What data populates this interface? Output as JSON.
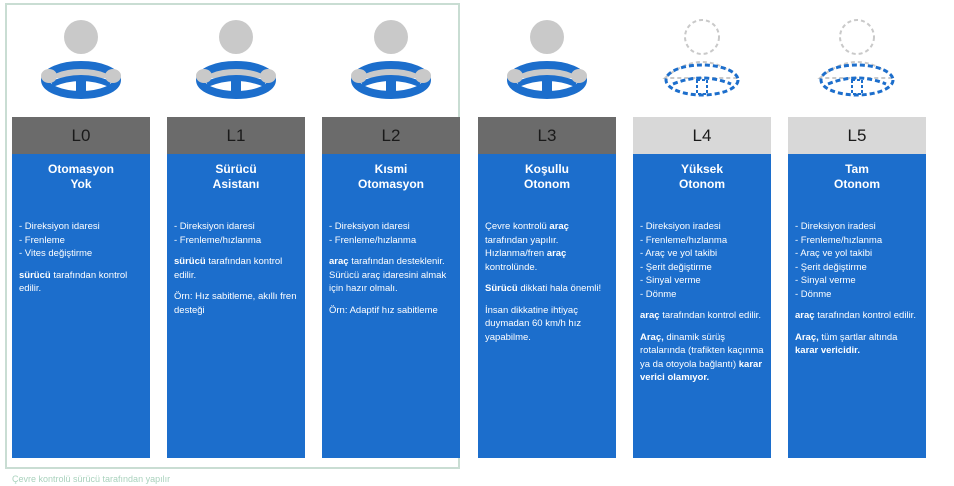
{
  "footer_note": "Çevre kontrolü sürücü tarafından yapılır",
  "levels": [
    {
      "label": "L0",
      "title_line1": "Otomasyon",
      "title_line2": "Yok",
      "bullets": [
        "- Direksiyon idaresi",
        "- Frenleme",
        "- Vites değiştirme"
      ],
      "p1_bold": "sürücü",
      "p1_rest": " tarafından kontrol edilir."
    },
    {
      "label": "L1",
      "title_line1": "Sürücü",
      "title_line2": "Asistanı",
      "bullets": [
        "- Direksiyon idaresi",
        "- Frenleme/hızlanma"
      ],
      "p1_bold": "sürücü",
      "p1_rest": " tarafından kontrol edilir.",
      "p2": "Örn: Hız sabitleme, akıllı fren desteği"
    },
    {
      "label": "L2",
      "title_line1": "Kısmi",
      "title_line2": "Otomasyon",
      "bullets": [
        "- Direksiyon idaresi",
        "- Frenleme/hızlanma"
      ],
      "p1_bold": "araç",
      "p1_rest": " tarafından desteklenir. Sürücü araç idaresini almak için hazır olmalı.",
      "p2": "Örn: Adaptif hız sabitleme"
    },
    {
      "label": "L3",
      "title_line1": "Koşullu",
      "title_line2": "Otonom",
      "p1_a": "Çevre kontrolü ",
      "p1_b": "araç",
      "p1_c": " tarafından yapılır. Hızlanma/fren ",
      "p1_d": "araç",
      "p1_e": " kontrolünde.",
      "p2_bold": "Sürücü",
      "p2_rest": " dikkati hala önemli!",
      "p3": "İnsan dikkatine ihtiyaç duymadan 60 km/h hız yapabilme."
    },
    {
      "label": "L4",
      "title_line1": "Yüksek",
      "title_line2": "Otonom",
      "bullets": [
        "- Direksiyon iradesi",
        "- Frenleme/hızlanma",
        "- Araç ve yol takibi",
        "- Şerit değiştirme",
        "- Sinyal verme",
        "- Dönme"
      ],
      "p1_bold": "araç",
      "p1_rest": " tarafından kontrol edilir.",
      "p2_bold": "Araç,",
      "p2_rest": " dinamik sürüş rotalarında (trafikten kaçınma ya da otoyola bağlantı) ",
      "p2_bold2": "karar verici olamıyor."
    },
    {
      "label": "L5",
      "title_line1": "Tam",
      "title_line2": "Otonom",
      "bullets": [
        "- Direksiyon iradesi",
        "- Frenleme/hızlanma",
        "- Araç ve yol takibi",
        "- Şerit değiştirme",
        "- Sinyal verme",
        "- Dönme"
      ],
      "p1_bold": "araç",
      "p1_rest": " tarafından kontrol edilir.",
      "p2_bold": "Araç,",
      "p2_rest": " tüm şartlar altında ",
      "p2_bold2": "karar vericidir."
    }
  ]
}
